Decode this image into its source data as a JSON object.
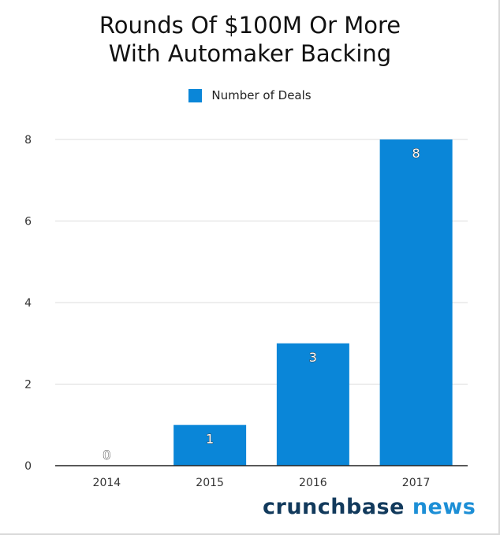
{
  "colors": {
    "bar": "#0a86d8",
    "grid": "#dddddd",
    "axis": "#222222",
    "brand_dark": "#123a5c",
    "brand_accent": "#1d8fd6"
  },
  "brand": {
    "name": "crunchbase",
    "suffix": "news"
  },
  "chart_data": {
    "type": "bar",
    "title_lines": [
      "Rounds Of $100M Or More",
      "With Automaker Backing"
    ],
    "categories": [
      "2014",
      "2015",
      "2016",
      "2017"
    ],
    "series": [
      {
        "name": "Number of Deals",
        "values": [
          0,
          1,
          3,
          8
        ],
        "data_labels": [
          "0",
          "1",
          "3",
          "8"
        ]
      }
    ],
    "ylim": [
      0,
      8
    ],
    "yticks": [
      0,
      2,
      4,
      6,
      8
    ],
    "grid": true,
    "legend": "top-center"
  }
}
